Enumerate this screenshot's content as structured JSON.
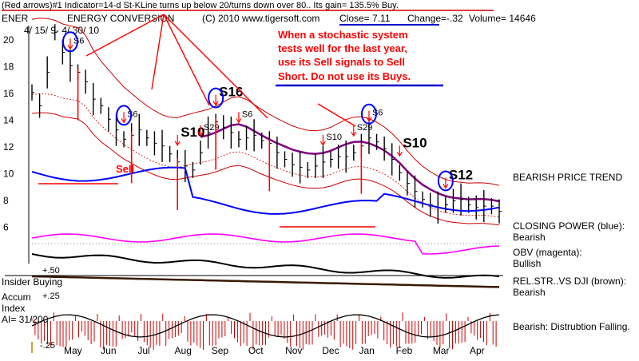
{
  "header": {
    "line1": "(Red arrows)#1 Indicator=14-d St-KLine turns up below 20/turns down over 80.. Its gain= 135.5% Buy.",
    "ticker": "ENER",
    "company": "ENERGY CONVERSION",
    "copyright": "(C) 2010 www.tigersoft.com",
    "close": "Close=  7.11",
    "change": "Change=-.32",
    "volume": "Volume= 14646",
    "date_range": "4/ 15/ 9- 4/ 30/ 10"
  },
  "annotation": {
    "lines": [
      "When a stochastic system",
      "tests well for the last year,",
      "use its Sell signals to Sell",
      "Short.  Do not use its Buys."
    ]
  },
  "right_panel": {
    "trend": "BEARISH PRICE TREND",
    "closing_power_label": "CLOSING POWER (blue):",
    "closing_power_value": "Bearish",
    "obv_label": "OBV (magenta):",
    "obv_value": "Bullish",
    "relstr_label": "REL.STR..VS DJI (brown):",
    "relstr_value": "Bearish",
    "accum_status": "Bearish: Distrubtion Falling."
  },
  "left_panel": {
    "insider": "Insider Buying",
    "accum_label1": "Accum",
    "accum_label2": "Index",
    "ai": "AI= 31/200",
    "plus50": "+.50",
    "plus25": "+.25",
    "minus25": "-.25"
  },
  "labels": {
    "sell": "Sell",
    "s6": "S6",
    "s10": "S10",
    "s12": "S12",
    "s16": "S16",
    "s29": "S29"
  },
  "colors": {
    "price": "#000000",
    "band": "#cc0000",
    "ma": "#800080",
    "closing_power": "#0000ff",
    "obv": "#ff00ff",
    "relstr": "#3a1a00",
    "signal": "#ff0000",
    "annotation_blue": "#0000cc"
  },
  "chart_data": {
    "type": "line",
    "title": "ENERGY CONVERSION",
    "x_ticks": [
      "May",
      "Jun",
      "Jul",
      "Aug",
      "Sep",
      "Oct",
      "Nov",
      "Dec",
      "Jan",
      "Feb",
      "Mar",
      "Apr"
    ],
    "y_ticks": [
      20,
      18,
      16,
      14,
      12,
      10,
      8,
      6
    ],
    "ylim": [
      5,
      21
    ],
    "series": [
      {
        "values": [
          16,
          15,
          17.5,
          20.5,
          19,
          18,
          17.5,
          16.8,
          15.5,
          15,
          14,
          13.2,
          12.5,
          12.8,
          13.2,
          12.6,
          12.2,
          12,
          11.4,
          10.8,
          10.5,
          10.2,
          11.5,
          13,
          13.8,
          13.4,
          13,
          12.5,
          12.6,
          12.8,
          12.4,
          12.2,
          11.5,
          11,
          10.6,
          10.4,
          10.2,
          10.5,
          10.8,
          11,
          11.2,
          11.2,
          11.5,
          12,
          12.6,
          12.3,
          11.8,
          11,
          10,
          9.2,
          8.6,
          8,
          7.6,
          7.4,
          7.6,
          7.9,
          8,
          7.6,
          7.4,
          7.5,
          7.5,
          7.11
        ]
      }
    ]
  }
}
